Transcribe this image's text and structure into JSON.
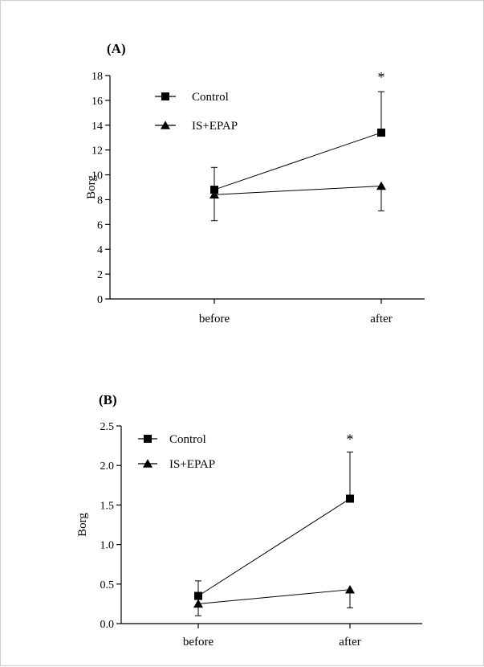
{
  "chart_data": [
    {
      "type": "line",
      "panel_label": "(A)",
      "ylabel": "Borg",
      "categories": [
        "before",
        "after"
      ],
      "ylim": [
        0,
        18
      ],
      "yticks": [
        "0",
        "2",
        "4",
        "6",
        "8",
        "10",
        "12",
        "14",
        "16",
        "18"
      ],
      "legend_position": "top-left",
      "grid": false,
      "series": [
        {
          "name": "Control",
          "marker": "square",
          "values": [
            8.8,
            13.4
          ],
          "error_upper": [
            10.6,
            16.7
          ],
          "error_lower": [
            null,
            null
          ]
        },
        {
          "name": "IS+EPAP",
          "marker": "triangle",
          "values": [
            8.4,
            9.1
          ],
          "error_upper": [
            null,
            null
          ],
          "error_lower": [
            6.3,
            7.1
          ]
        }
      ],
      "annotations": [
        {
          "text": "*",
          "category": "after"
        }
      ]
    },
    {
      "type": "line",
      "panel_label": "(B)",
      "ylabel": "Borg",
      "categories": [
        "before",
        "after"
      ],
      "ylim": [
        0,
        2.5
      ],
      "yticks": [
        "0.0",
        "0.5",
        "1.0",
        "1.5",
        "2.0",
        "2.5"
      ],
      "legend_position": "top-left",
      "grid": false,
      "series": [
        {
          "name": "Control",
          "marker": "square",
          "values": [
            0.35,
            1.58
          ],
          "error_upper": [
            0.54,
            2.17
          ],
          "error_lower": [
            null,
            null
          ]
        },
        {
          "name": "IS+EPAP",
          "marker": "triangle",
          "values": [
            0.25,
            0.43
          ],
          "error_upper": [
            null,
            null
          ],
          "error_lower": [
            0.1,
            0.2
          ]
        }
      ],
      "annotations": [
        {
          "text": "*",
          "category": "after"
        }
      ]
    }
  ]
}
